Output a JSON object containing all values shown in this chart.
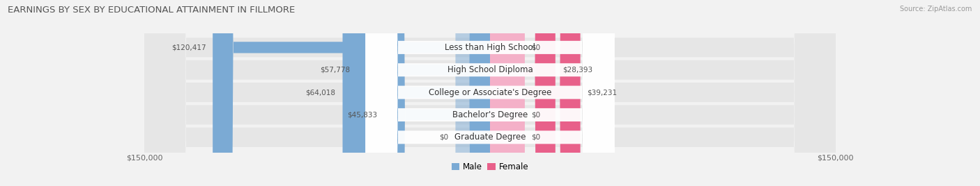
{
  "title": "EARNINGS BY SEX BY EDUCATIONAL ATTAINMENT IN FILLMORE",
  "source": "Source: ZipAtlas.com",
  "categories": [
    "Less than High School",
    "High School Diploma",
    "College or Associate's Degree",
    "Bachelor's Degree",
    "Graduate Degree"
  ],
  "male_values": [
    120417,
    57778,
    64018,
    45833,
    0
  ],
  "female_values": [
    0,
    28393,
    39231,
    0,
    0
  ],
  "male_color": "#7baad4",
  "female_color_strong": "#e8608a",
  "female_color_light": "#f4b0c8",
  "axis_max": 150000,
  "bg_color": "#f2f2f2",
  "row_bg_color": "#e6e6e6",
  "label_bg_color": "#ffffff",
  "title_fontsize": 9.5,
  "label_fontsize": 8.5,
  "value_fontsize": 7.5,
  "tick_fontsize": 8,
  "legend_fontsize": 8.5,
  "note_female_small": [
    0,
    3,
    4
  ],
  "note_male_zero": [
    4
  ]
}
